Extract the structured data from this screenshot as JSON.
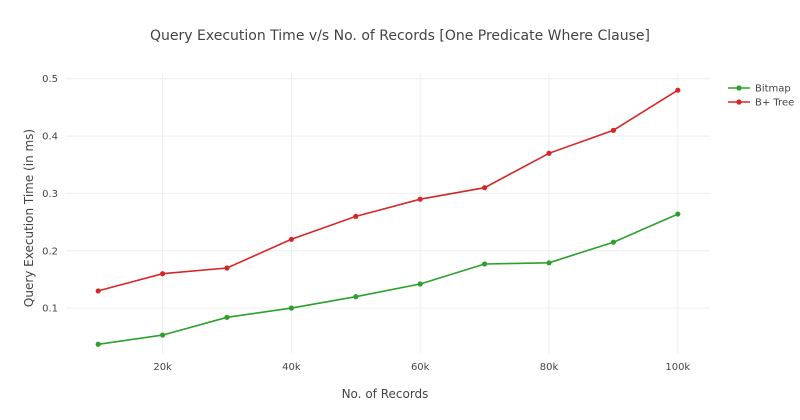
{
  "chart_data": {
    "type": "line",
    "title": "Query Execution Time v/s No. of Records [One Predicate Where Clause]",
    "xlabel": "No. of Records",
    "ylabel": "Query Execution Time (in ms)",
    "x": [
      10000,
      20000,
      30000,
      40000,
      50000,
      60000,
      70000,
      80000,
      90000,
      100000
    ],
    "xlim": [
      5000,
      105000
    ],
    "ylim": [
      0.02,
      0.51
    ],
    "xticks": [
      20000,
      40000,
      60000,
      80000,
      100000
    ],
    "xtick_labels": [
      "20k",
      "40k",
      "60k",
      "80k",
      "100k"
    ],
    "yticks": [
      0.1,
      0.2,
      0.3,
      0.4,
      0.5
    ],
    "ytick_labels": [
      "0.1",
      "0.2",
      "0.3",
      "0.4",
      "0.5"
    ],
    "grid": true,
    "legend_position": "top-right",
    "series": [
      {
        "name": "Bitmap",
        "color": "#2ca02c",
        "values": [
          0.037,
          0.053,
          0.084,
          0.1,
          0.12,
          0.142,
          0.177,
          0.179,
          0.215,
          0.264
        ]
      },
      {
        "name": "B+ Tree",
        "color": "#d62728",
        "values": [
          0.13,
          0.16,
          0.17,
          0.22,
          0.26,
          0.29,
          0.31,
          0.37,
          0.41,
          0.48
        ]
      }
    ]
  }
}
